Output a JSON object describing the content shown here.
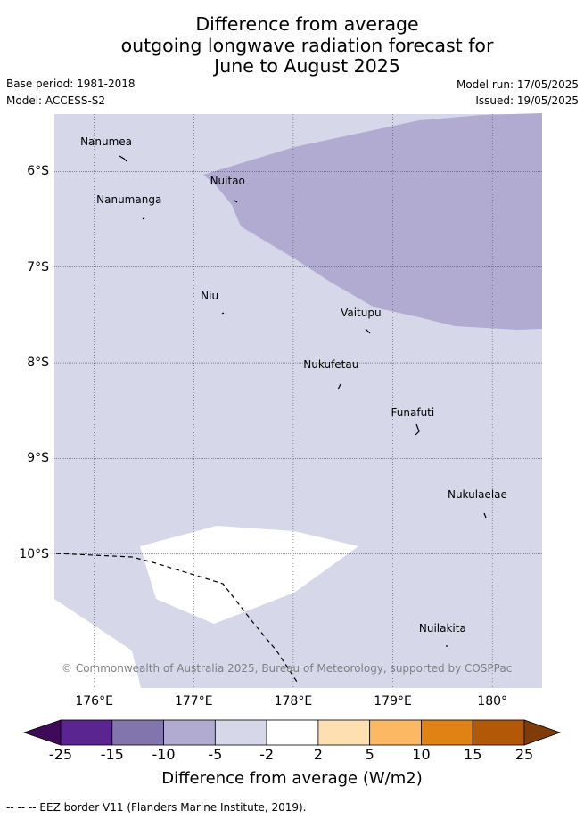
{
  "title": {
    "line1": "Difference from average",
    "line2": "outgoing longwave radiation forecast for",
    "line3": "June to August 2025"
  },
  "meta": {
    "base_period": "Base period: 1981-2018",
    "model": "Model: ACCESS-S2",
    "model_run": "Model run: 17/05/2025",
    "issued": "Issued: 19/05/2025"
  },
  "map": {
    "lon_range": [
      175.6,
      180.5
    ],
    "lat_range": [
      -5.4,
      -11.4
    ],
    "lon_ticks": [
      {
        "value": 176,
        "label": "176°E"
      },
      {
        "value": 177,
        "label": "177°E"
      },
      {
        "value": 178,
        "label": "178°E"
      },
      {
        "value": 179,
        "label": "179°E"
      },
      {
        "value": 180,
        "label": "180°"
      }
    ],
    "lat_ticks": [
      {
        "value": -6,
        "label": "6°S"
      },
      {
        "value": -7,
        "label": "7°S"
      },
      {
        "value": -8,
        "label": "8°S"
      },
      {
        "value": -9,
        "label": "9°S"
      },
      {
        "value": -10,
        "label": "10°S"
      }
    ],
    "background_class_color": "#d7d7ea",
    "places": [
      {
        "name": "Nanumea",
        "lon": 176.12,
        "lat": -5.69
      },
      {
        "name": "Nuitao",
        "lon": 177.34,
        "lat": -6.1
      },
      {
        "name": "Nanumanga",
        "lon": 176.35,
        "lat": -6.29
      },
      {
        "name": "Niu",
        "lon": 177.16,
        "lat": -7.3
      },
      {
        "name": "Vaitupu",
        "lon": 178.68,
        "lat": -7.48
      },
      {
        "name": "Nukufetau",
        "lon": 178.38,
        "lat": -8.02
      },
      {
        "name": "Funafuti",
        "lon": 179.2,
        "lat": -8.52
      },
      {
        "name": "Nukulaelae",
        "lon": 179.85,
        "lat": -9.38
      },
      {
        "name": "Nuilakita",
        "lon": 179.5,
        "lat": -10.78
      }
    ],
    "copyright": "© Commonwealth of Australia 2025, Bureau of Meteorology, supported by COSPPac"
  },
  "colorbar": {
    "title": "Difference from average (W/m2)",
    "labels": [
      "-25",
      "-15",
      "-10",
      "-5",
      "-2",
      "2",
      "5",
      "10",
      "15",
      "25"
    ],
    "colors": [
      "#3f0a57",
      "#5b2591",
      "#8275ae",
      "#b1abd2",
      "#d7d7ea",
      "#ffffff",
      "#fedfb1",
      "#fdb863",
      "#e08214",
      "#b35806",
      "#7f3b08"
    ]
  },
  "footer": "--  --  -- EEZ border V11 (Flanders Marine Institute, 2019)."
}
